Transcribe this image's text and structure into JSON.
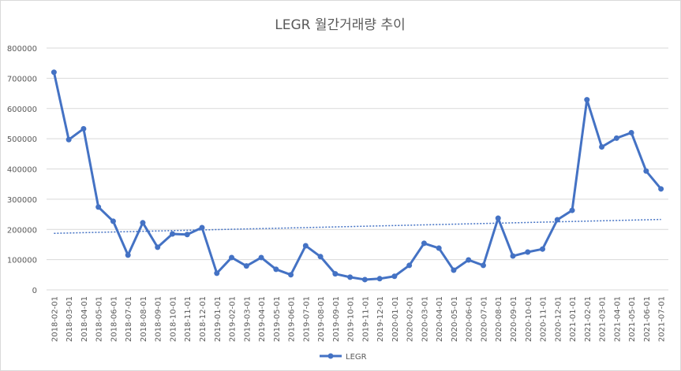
{
  "chart_data": {
    "type": "line",
    "title": "LEGR 월간거래량 추이",
    "xlabel": "",
    "ylabel": "",
    "ylim": [
      0,
      800000
    ],
    "yticks": [
      "0",
      "100000",
      "200000",
      "300000",
      "400000",
      "500000",
      "600000",
      "700000",
      "800000"
    ],
    "grid": true,
    "legend_position": "bottom",
    "x": [
      "2018-02-01",
      "2018-03-01",
      "2018-04-01",
      "2018-05-01",
      "2018-06-01",
      "2018-07-01",
      "2018-08-01",
      "2018-09-01",
      "2018-10-01",
      "2018-11-01",
      "2018-12-01",
      "2019-01-01",
      "2019-02-01",
      "2019-03-01",
      "2019-04-01",
      "2019-05-01",
      "2019-06-01",
      "2019-07-01",
      "2019-08-01",
      "2019-09-01",
      "2019-10-01",
      "2019-11-01",
      "2019-12-01",
      "2020-01-01",
      "2020-02-01",
      "2020-03-01",
      "2020-04-01",
      "2020-05-01",
      "2020-06-01",
      "2020-07-01",
      "2020-08-01",
      "2020-09-01",
      "2020-10-01",
      "2020-11-01",
      "2020-12-01",
      "2021-01-01",
      "2021-02-01",
      "2021-03-01",
      "2021-04-01",
      "2021-05-01",
      "2021-06-01",
      "2021-07-01"
    ],
    "series": [
      {
        "name": "LEGR",
        "color": "#4472c4",
        "values": [
          720000,
          497000,
          533000,
          274000,
          227000,
          115000,
          222000,
          141000,
          185000,
          183000,
          206000,
          55000,
          107000,
          79000,
          107000,
          68000,
          50000,
          146000,
          110000,
          53000,
          42000,
          34000,
          37000,
          45000,
          81000,
          154000,
          138000,
          65000,
          99000,
          81000,
          237000,
          112000,
          125000,
          135000,
          232000,
          263000,
          629000,
          473000,
          502000,
          520000,
          393000,
          334000
        ]
      }
    ],
    "trendline": {
      "type": "linear",
      "color": "#4472c4",
      "start": 187000,
      "end": 233000
    }
  }
}
